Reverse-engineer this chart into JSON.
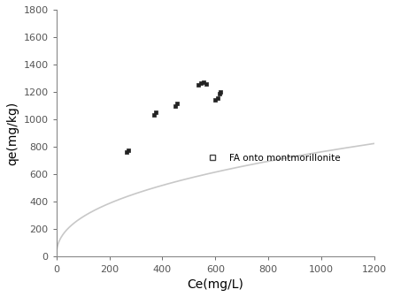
{
  "title": "",
  "xlabel": "Ce(mg/L)",
  "ylabel": "qe(mg/kg)",
  "xlim": [
    0,
    1200
  ],
  "ylim": [
    0,
    1800
  ],
  "xticks": [
    0,
    200,
    400,
    600,
    800,
    1000,
    1200
  ],
  "yticks": [
    0,
    200,
    400,
    600,
    800,
    1000,
    1200,
    1400,
    1600,
    1800
  ],
  "scatter_x": [
    265,
    270,
    370,
    375,
    450,
    455,
    535,
    545,
    555,
    565,
    600,
    610,
    615,
    620
  ],
  "scatter_y": [
    760,
    775,
    1035,
    1050,
    1100,
    1115,
    1250,
    1265,
    1270,
    1260,
    1140,
    1155,
    1190,
    1200
  ],
  "marker": "s",
  "marker_color": "#222222",
  "marker_size": 12,
  "curve_color": "#c8c8c8",
  "curve_linewidth": 1.2,
  "freundlich_Kf": 42.0,
  "freundlich_n": 0.42,
  "legend_label": "FA onto montmorillonite",
  "legend_marker": "s",
  "legend_marker_color": "#444444",
  "legend_fontsize": 7.5,
  "axis_fontsize": 10,
  "tick_fontsize": 8,
  "background_color": "#ffffff"
}
